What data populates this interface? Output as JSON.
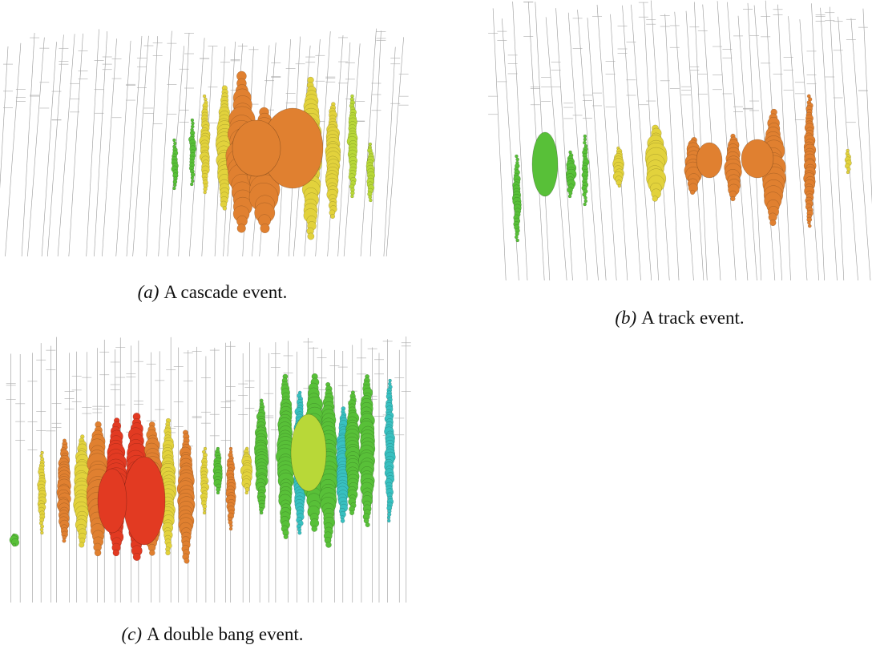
{
  "panels": [
    {
      "label": "(a)",
      "caption": "A cascade event."
    },
    {
      "label": "(b)",
      "caption": "A track event."
    },
    {
      "label": "(c)",
      "caption": "A double bang event."
    }
  ]
}
